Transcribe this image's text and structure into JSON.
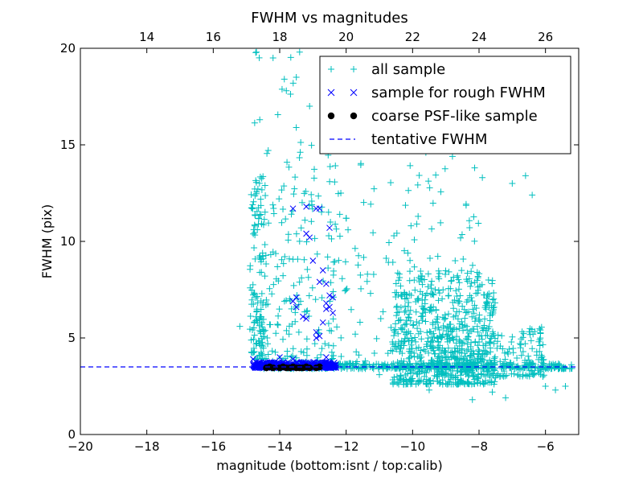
{
  "chart_data": {
    "type": "scatter",
    "title": "FWHM vs magnitudes",
    "xlabel": "magnitude (bottom:isnt / top:calib)",
    "ylabel": "FWHM (pix)",
    "xlim": [
      -20,
      -5
    ],
    "ylim": [
      0,
      20
    ],
    "xticks": [
      -20,
      -18,
      -16,
      -14,
      -12,
      -10,
      -8,
      -6
    ],
    "yticks": [
      0,
      5,
      10,
      15,
      20
    ],
    "top_axis": {
      "ticks": [
        14,
        16,
        18,
        20,
        22,
        24,
        26
      ],
      "offset": 32
    },
    "grid": false,
    "legend_position": "top-right",
    "series": [
      {
        "name": "all sample",
        "marker": "plus",
        "color": "#00bfbf",
        "clusters": [
          {
            "x": [
              -14.9,
              -14.4
            ],
            "y": [
              3.9,
              13.4
            ],
            "n": 130
          },
          {
            "x": [
              -14.8,
              -13.0
            ],
            "y": [
              3.8,
              20.0
            ],
            "n": 70
          },
          {
            "x": [
              -14.5,
              -12.3
            ],
            "y": [
              3.7,
              14.5
            ],
            "n": 120
          },
          {
            "x": [
              -12.5,
              -8.0
            ],
            "y": [
              3.6,
              14.5
            ],
            "n": 170
          },
          {
            "x": [
              -10.6,
              -7.5
            ],
            "y": [
              2.6,
              8.5
            ],
            "n": 600
          },
          {
            "x": [
              -9.5,
              -6.0
            ],
            "y": [
              3.0,
              5.6
            ],
            "n": 230
          },
          {
            "x": [
              -14.6,
              -5.2
            ],
            "y": [
              3.4,
              3.7
            ],
            "n": 400
          }
        ],
        "points": [
          {
            "x": -15.2,
            "y": 5.6
          },
          {
            "x": -13.1,
            "y": 17.0
          },
          {
            "x": -13.5,
            "y": 18.5
          },
          {
            "x": -13.8,
            "y": 17.8
          },
          {
            "x": -14.6,
            "y": 16.3
          },
          {
            "x": -12.0,
            "y": 15.1
          },
          {
            "x": -6.4,
            "y": 12.4
          },
          {
            "x": -6.6,
            "y": 13.4
          },
          {
            "x": -7.0,
            "y": 13.0
          },
          {
            "x": -7.9,
            "y": 13.3
          },
          {
            "x": -8.8,
            "y": 14.4
          },
          {
            "x": -9.6,
            "y": 14.6
          },
          {
            "x": -10.8,
            "y": 15.2
          },
          {
            "x": -6.2,
            "y": 4.8
          },
          {
            "x": -6.0,
            "y": 2.5
          },
          {
            "x": -5.7,
            "y": 2.3
          },
          {
            "x": -5.4,
            "y": 2.5
          },
          {
            "x": -8.2,
            "y": 1.8
          },
          {
            "x": -7.6,
            "y": 2.2
          },
          {
            "x": -7.2,
            "y": 1.9
          },
          {
            "x": -9.5,
            "y": 2.3
          },
          {
            "x": -10.2,
            "y": 2.6
          },
          {
            "x": -11.0,
            "y": 3.1
          },
          {
            "x": -13.4,
            "y": 19.8
          },
          {
            "x": -14.7,
            "y": 19.8
          },
          {
            "x": -14.2,
            "y": 19.5
          }
        ]
      },
      {
        "name": "sample for rough FWHM",
        "marker": "x",
        "color": "#0000ff",
        "clusters": [
          {
            "x": [
              -14.8,
              -12.3
            ],
            "y": [
              3.45,
              3.75
            ],
            "n": 340
          }
        ],
        "points": [
          {
            "x": -13.6,
            "y": 11.7
          },
          {
            "x": -13.2,
            "y": 11.8
          },
          {
            "x": -12.9,
            "y": 11.7
          },
          {
            "x": -12.8,
            "y": 11.7
          },
          {
            "x": -12.5,
            "y": 10.7
          },
          {
            "x": -13.2,
            "y": 10.4
          },
          {
            "x": -13.1,
            "y": 10.2
          },
          {
            "x": -13.0,
            "y": 9.0
          },
          {
            "x": -12.7,
            "y": 8.5
          },
          {
            "x": -12.8,
            "y": 7.9
          },
          {
            "x": -12.6,
            "y": 7.8
          },
          {
            "x": -12.5,
            "y": 7.2
          },
          {
            "x": -12.4,
            "y": 7.1
          },
          {
            "x": -12.6,
            "y": 6.8
          },
          {
            "x": -12.5,
            "y": 6.6
          },
          {
            "x": -12.6,
            "y": 6.5
          },
          {
            "x": -12.4,
            "y": 6.3
          },
          {
            "x": -13.5,
            "y": 7.1
          },
          {
            "x": -13.6,
            "y": 6.9
          },
          {
            "x": -13.5,
            "y": 6.6
          },
          {
            "x": -13.3,
            "y": 6.1
          },
          {
            "x": -13.2,
            "y": 6.0
          },
          {
            "x": -12.7,
            "y": 5.8
          },
          {
            "x": -12.9,
            "y": 5.3
          },
          {
            "x": -12.8,
            "y": 5.1
          },
          {
            "x": -12.9,
            "y": 5.0
          },
          {
            "x": -12.6,
            "y": 4.0
          },
          {
            "x": -13.6,
            "y": 3.9
          },
          {
            "x": -14.0,
            "y": 4.0
          },
          {
            "x": -14.8,
            "y": 3.9
          }
        ]
      },
      {
        "name": "coarse PSF-like sample",
        "marker": "circle",
        "color": "#000000",
        "points": [
          {
            "x": -14.4,
            "y": 3.45
          },
          {
            "x": -14.3,
            "y": 3.5
          },
          {
            "x": -14.2,
            "y": 3.45
          },
          {
            "x": -14.0,
            "y": 3.45
          },
          {
            "x": -13.9,
            "y": 3.5
          },
          {
            "x": -13.8,
            "y": 3.45
          },
          {
            "x": -13.7,
            "y": 3.45
          },
          {
            "x": -13.6,
            "y": 3.5
          },
          {
            "x": -13.5,
            "y": 3.45
          },
          {
            "x": -13.4,
            "y": 3.45
          },
          {
            "x": -13.3,
            "y": 3.45
          },
          {
            "x": -13.2,
            "y": 3.5
          },
          {
            "x": -13.1,
            "y": 3.45
          },
          {
            "x": -12.9,
            "y": 3.45
          },
          {
            "x": -12.8,
            "y": 3.5
          }
        ]
      },
      {
        "name": "tentative FWHM",
        "marker": "dashed-line",
        "color": "#0000ff",
        "y": 3.5,
        "x": [
          -20,
          -5
        ]
      }
    ]
  }
}
